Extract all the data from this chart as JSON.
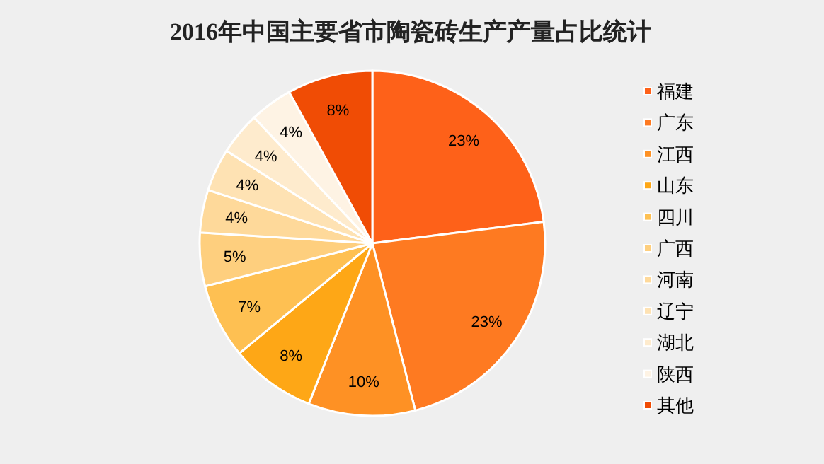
{
  "chart_data": {
    "type": "pie",
    "title": "2016年中国主要省市陶瓷砖生产产量占比统计",
    "categories": [
      "福建",
      "广东",
      "江西",
      "山东",
      "四川",
      "广西",
      "河南",
      "辽宁",
      "湖北",
      "陕西",
      "其他"
    ],
    "values": [
      23,
      23,
      10,
      8,
      7,
      5,
      4,
      4,
      4,
      4,
      8
    ],
    "colors": [
      "#fe6119",
      "#fe7a21",
      "#fe9124",
      "#fea716",
      "#fec052",
      "#fecf7e",
      "#fed99a",
      "#fee2b3",
      "#feebcd",
      "#fef3e4",
      "#f04c05"
    ],
    "value_labels": [
      "23%",
      "23%",
      "10%",
      "8%",
      "7%",
      "5%",
      "4%",
      "4%",
      "4%",
      "4%",
      "8%"
    ],
    "legend": "right"
  }
}
